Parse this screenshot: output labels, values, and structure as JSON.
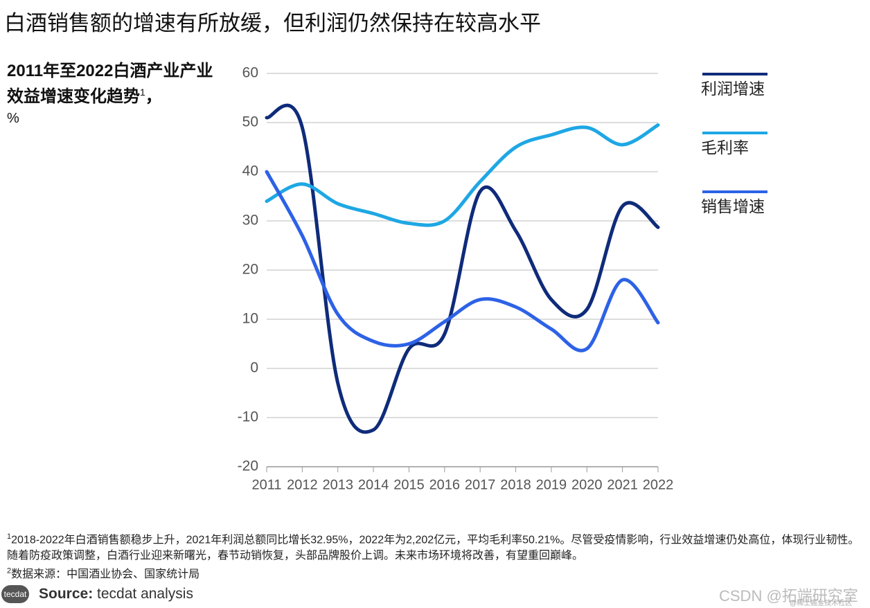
{
  "title": "白酒销售额的增速有所放缓，但利润仍然保持在较高水平",
  "chart_data": {
    "type": "line",
    "subtitle": "2011年至2022白酒产业产业效益增速变化趋势",
    "subtitle_note": "1",
    "subtitle_suffix": "，",
    "unit": "%",
    "x": [
      2011,
      2012,
      2013,
      2014,
      2015,
      2016,
      2017,
      2018,
      2019,
      2020,
      2021,
      2022
    ],
    "xlim": [
      2011,
      2022
    ],
    "xticks": [
      2011,
      2012,
      2013,
      2014,
      2015,
      2016,
      2017,
      2018,
      2019,
      2020,
      2021,
      2022
    ],
    "ylim": [
      -20,
      60
    ],
    "yticks": [
      -20,
      -10,
      0,
      10,
      20,
      30,
      40,
      50,
      60
    ],
    "grid": true,
    "smooth": true,
    "legend": "right",
    "series": [
      {
        "name": "利润增速",
        "color": "#0f2b7a",
        "values": [
          51,
          49,
          -3,
          -12.5,
          4,
          7,
          36,
          28,
          14,
          12,
          33,
          28.7
        ]
      },
      {
        "name": "毛利率",
        "color": "#1ea7e4",
        "values": [
          34,
          37.5,
          33.5,
          31.5,
          29.5,
          30,
          38,
          45,
          47.5,
          49,
          45.5,
          49.5
        ]
      },
      {
        "name": "销售增速",
        "color": "#2d62e6",
        "values": [
          40,
          27,
          11,
          5.5,
          5,
          9.5,
          14,
          12.5,
          8,
          4,
          18,
          9.3
        ]
      }
    ]
  },
  "footnotes": [
    {
      "mark": "1",
      "text": "2018-2022年白酒销售额稳步上升，2021年利润总额同比增长32.95%，2022年为2,202亿元，平均毛利率50.21%。尽管受疫情影响，行业效益增速仍处高位，体现行业韧性。随着防疫政策调整，白酒行业迎来新曙光，春节动销恢复，头部品牌股价上调。未来市场环境将改善，有望重回巅峰。"
    },
    {
      "mark": "2",
      "text": "数据来源：中国酒业协会、国家统计局"
    }
  ],
  "source": {
    "logo": "tecdat",
    "label": "Source:",
    "text": "tecdat analysis"
  },
  "watermark": {
    "main": "CSDN @拓端研究室",
    "small": "@稀土掘金技术社区"
  }
}
